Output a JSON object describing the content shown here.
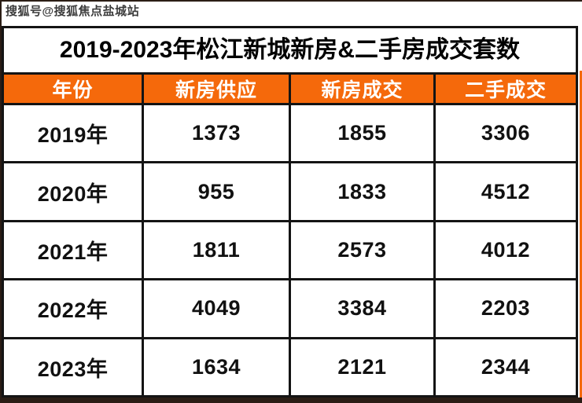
{
  "watermark": "搜狐号@搜狐焦点盐城站",
  "title": "2019-2023年松江新城新房&二手房成交套数",
  "colors": {
    "header_bg": "#F5690B",
    "header_text": "#FFFFFF",
    "grid_line": "#141414",
    "frame": "#2B1D15"
  },
  "table": {
    "columns": [
      "年份",
      "新房供应",
      "新房成交",
      "二手成交"
    ],
    "rows": [
      [
        "2019年",
        "1373",
        "1855",
        "3306"
      ],
      [
        "2020年",
        "955",
        "1833",
        "4512"
      ],
      [
        "2021年",
        "1811",
        "2573",
        "4012"
      ],
      [
        "2022年",
        "4049",
        "3384",
        "2203"
      ],
      [
        "2023年",
        "1634",
        "2121",
        "2344"
      ]
    ]
  },
  "chart_data": {
    "type": "table",
    "title": "2019-2023年松江新城新房&二手房成交套数",
    "columns": [
      "年份",
      "新房供应",
      "新房成交",
      "二手成交"
    ],
    "categories": [
      "2019年",
      "2020年",
      "2021年",
      "2022年",
      "2023年"
    ],
    "series": [
      {
        "name": "新房供应",
        "values": [
          1373,
          955,
          1811,
          4049,
          1634
        ]
      },
      {
        "name": "新房成交",
        "values": [
          1855,
          1833,
          2573,
          3384,
          2121
        ]
      },
      {
        "name": "二手成交",
        "values": [
          3306,
          4512,
          4012,
          2203,
          2344
        ]
      }
    ]
  }
}
